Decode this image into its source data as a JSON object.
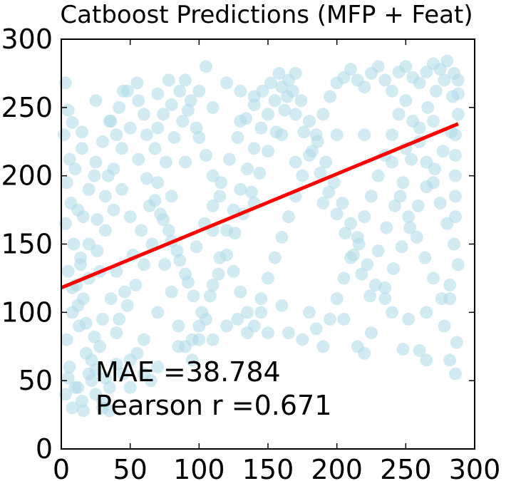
{
  "chart_data": {
    "type": "scatter",
    "title": "Catboost Predictions (MFP + Feat)",
    "xlabel": "",
    "ylabel": "",
    "xlim": [
      0,
      300
    ],
    "ylim": [
      0,
      300
    ],
    "xticks": [
      "0",
      "50",
      "100",
      "150",
      "200",
      "250",
      "300"
    ],
    "yticks": [
      "0",
      "50",
      "100",
      "150",
      "200",
      "250",
      "300"
    ],
    "grid": false,
    "point_color": "#add8e6",
    "point_opacity": 0.55,
    "points": [
      [
        3,
        268
      ],
      [
        5,
        248
      ],
      [
        8,
        239
      ],
      [
        2,
        230
      ],
      [
        6,
        212
      ],
      [
        10,
        205
      ],
      [
        4,
        195
      ],
      [
        7,
        180
      ],
      [
        12,
        175
      ],
      [
        3,
        165
      ],
      [
        9,
        150
      ],
      [
        14,
        140
      ],
      [
        5,
        130
      ],
      [
        11,
        120
      ],
      [
        16,
        110
      ],
      [
        8,
        100
      ],
      [
        13,
        90
      ],
      [
        4,
        80
      ],
      [
        18,
        70
      ],
      [
        6,
        60
      ],
      [
        20,
        55
      ],
      [
        10,
        45
      ],
      [
        25,
        40
      ],
      [
        15,
        35
      ],
      [
        30,
        30
      ],
      [
        35,
        28
      ],
      [
        22,
        65
      ],
      [
        28,
        75
      ],
      [
        40,
        85
      ],
      [
        45,
        55
      ],
      [
        50,
        45
      ],
      [
        55,
        70
      ],
      [
        60,
        80
      ],
      [
        65,
        50
      ],
      [
        70,
        100
      ],
      [
        20,
        125
      ],
      [
        26,
        145
      ],
      [
        32,
        160
      ],
      [
        38,
        175
      ],
      [
        44,
        190
      ],
      [
        25,
        210
      ],
      [
        30,
        225
      ],
      [
        36,
        240
      ],
      [
        42,
        250
      ],
      [
        48,
        262
      ],
      [
        15,
        232
      ],
      [
        34,
        200
      ],
      [
        40,
        130
      ],
      [
        46,
        115
      ],
      [
        52,
        142
      ],
      [
        58,
        160
      ],
      [
        64,
        178
      ],
      [
        70,
        195
      ],
      [
        76,
        210
      ],
      [
        82,
        228
      ],
      [
        88,
        240
      ],
      [
        94,
        255
      ],
      [
        100,
        262
      ],
      [
        56,
        255
      ],
      [
        62,
        230
      ],
      [
        68,
        220
      ],
      [
        74,
        245
      ],
      [
        80,
        252
      ],
      [
        86,
        262
      ],
      [
        92,
        248
      ],
      [
        98,
        235
      ],
      [
        75,
        135
      ],
      [
        80,
        115
      ],
      [
        85,
        90
      ],
      [
        90,
        75
      ],
      [
        95,
        65
      ],
      [
        100,
        80
      ],
      [
        105,
        95
      ],
      [
        110,
        120
      ],
      [
        115,
        140
      ],
      [
        120,
        160
      ],
      [
        125,
        175
      ],
      [
        130,
        190
      ],
      [
        135,
        205
      ],
      [
        140,
        220
      ],
      [
        145,
        235
      ],
      [
        150,
        245
      ],
      [
        155,
        255
      ],
      [
        160,
        265
      ],
      [
        165,
        270
      ],
      [
        170,
        275
      ],
      [
        120,
        268
      ],
      [
        130,
        262
      ],
      [
        140,
        258
      ],
      [
        110,
        250
      ],
      [
        100,
        228
      ],
      [
        105,
        215
      ],
      [
        110,
        200
      ],
      [
        115,
        185
      ],
      [
        125,
        130
      ],
      [
        130,
        115
      ],
      [
        135,
        100
      ],
      [
        140,
        90
      ],
      [
        145,
        110
      ],
      [
        150,
        125
      ],
      [
        155,
        140
      ],
      [
        160,
        155
      ],
      [
        165,
        170
      ],
      [
        170,
        185
      ],
      [
        175,
        200
      ],
      [
        180,
        215
      ],
      [
        185,
        230
      ],
      [
        190,
        245
      ],
      [
        195,
        258
      ],
      [
        200,
        268
      ],
      [
        205,
        272
      ],
      [
        210,
        278
      ],
      [
        215,
        270
      ],
      [
        220,
        265
      ],
      [
        225,
        275
      ],
      [
        230,
        280
      ],
      [
        235,
        270
      ],
      [
        240,
        262
      ],
      [
        245,
        276
      ],
      [
        250,
        280
      ],
      [
        255,
        272
      ],
      [
        260,
        268
      ],
      [
        265,
        276
      ],
      [
        270,
        282
      ],
      [
        275,
        278
      ],
      [
        280,
        284
      ],
      [
        285,
        275
      ],
      [
        288,
        270
      ],
      [
        180,
        100
      ],
      [
        185,
        88
      ],
      [
        190,
        75
      ],
      [
        195,
        95
      ],
      [
        200,
        110
      ],
      [
        205,
        125
      ],
      [
        210,
        140
      ],
      [
        215,
        155
      ],
      [
        220,
        170
      ],
      [
        225,
        185
      ],
      [
        230,
        200
      ],
      [
        235,
        215
      ],
      [
        240,
        230
      ],
      [
        245,
        245
      ],
      [
        250,
        255
      ],
      [
        255,
        240
      ],
      [
        260,
        225
      ],
      [
        265,
        210
      ],
      [
        270,
        195
      ],
      [
        275,
        180
      ],
      [
        280,
        165
      ],
      [
        285,
        150
      ],
      [
        288,
        135
      ],
      [
        282,
        120
      ],
      [
        276,
        110
      ],
      [
        270,
        125
      ],
      [
        264,
        140
      ],
      [
        258,
        155
      ],
      [
        252,
        170
      ],
      [
        246,
        185
      ],
      [
        240,
        100
      ],
      [
        235,
        110
      ],
      [
        228,
        120
      ],
      [
        222,
        135
      ],
      [
        216,
        150
      ],
      [
        210,
        165
      ],
      [
        204,
        180
      ],
      [
        198,
        195
      ],
      [
        192,
        210
      ],
      [
        186,
        225
      ],
      [
        180,
        240
      ],
      [
        174,
        255
      ],
      [
        168,
        262
      ],
      [
        162,
        248
      ],
      [
        156,
        232
      ],
      [
        150,
        218
      ],
      [
        144,
        202
      ],
      [
        138,
        188
      ],
      [
        132,
        172
      ],
      [
        126,
        158
      ],
      [
        120,
        142
      ],
      [
        114,
        128
      ],
      [
        108,
        112
      ],
      [
        102,
        100
      ],
      [
        96,
        112
      ],
      [
        90,
        128
      ],
      [
        84,
        145
      ],
      [
        78,
        160
      ],
      [
        72,
        172
      ],
      [
        66,
        150
      ],
      [
        60,
        135
      ],
      [
        54,
        120
      ],
      [
        48,
        105
      ],
      [
        42,
        95
      ],
      [
        36,
        110
      ],
      [
        30,
        95
      ],
      [
        24,
        82
      ],
      [
        18,
        92
      ],
      [
        12,
        105
      ],
      [
        8,
        118
      ],
      [
        14,
        135
      ],
      [
        20,
        150
      ],
      [
        26,
        168
      ],
      [
        32,
        185
      ],
      [
        38,
        205
      ],
      [
        44,
        220
      ],
      [
        50,
        235
      ],
      [
        56,
        212
      ],
      [
        62,
        198
      ],
      [
        68,
        182
      ],
      [
        74,
        168
      ],
      [
        80,
        152
      ],
      [
        86,
        138
      ],
      [
        92,
        122
      ],
      [
        98,
        148
      ],
      [
        104,
        165
      ],
      [
        110,
        178
      ],
      [
        116,
        195
      ],
      [
        122,
        212
      ],
      [
        128,
        228
      ],
      [
        134,
        242
      ],
      [
        140,
        252
      ],
      [
        146,
        262
      ],
      [
        152,
        268
      ],
      [
        158,
        275
      ],
      [
        164,
        258
      ],
      [
        170,
        245
      ],
      [
        176,
        232
      ],
      [
        182,
        218
      ],
      [
        188,
        202
      ],
      [
        194,
        188
      ],
      [
        200,
        172
      ],
      [
        206,
        158
      ],
      [
        212,
        142
      ],
      [
        218,
        128
      ],
      [
        224,
        112
      ],
      [
        230,
        145
      ],
      [
        236,
        162
      ],
      [
        242,
        178
      ],
      [
        248,
        195
      ],
      [
        254,
        212
      ],
      [
        260,
        235
      ],
      [
        266,
        250
      ],
      [
        272,
        262
      ],
      [
        278,
        270
      ],
      [
        284,
        258
      ],
      [
        288,
        245
      ],
      [
        283,
        232
      ],
      [
        277,
        218
      ],
      [
        271,
        205
      ],
      [
        265,
        192
      ],
      [
        259,
        178
      ],
      [
        253,
        162
      ],
      [
        247,
        148
      ],
      [
        241,
        132
      ],
      [
        235,
        118
      ],
      [
        286,
        200
      ],
      [
        286,
        185
      ],
      [
        286,
        170
      ],
      [
        286,
        230
      ],
      [
        286,
        215
      ],
      [
        288,
        260
      ],
      [
        20,
        190
      ],
      [
        24,
        200
      ],
      [
        16,
        170
      ],
      [
        40,
        230
      ],
      [
        70,
        235
      ],
      [
        90,
        210
      ],
      [
        130,
        240
      ],
      [
        160,
        230
      ],
      [
        190,
        180
      ],
      [
        220,
        230
      ],
      [
        250,
        220
      ],
      [
        270,
        240
      ],
      [
        240,
        210
      ],
      [
        200,
        230
      ],
      [
        170,
        210
      ],
      [
        140,
        180
      ],
      [
        110,
        160
      ],
      [
        80,
        185
      ],
      [
        50,
        170
      ],
      [
        28,
        130
      ],
      [
        248,
        73
      ],
      [
        260,
        72
      ],
      [
        265,
        65
      ],
      [
        282,
        65
      ],
      [
        286,
        55
      ],
      [
        287,
        78
      ],
      [
        265,
        100
      ],
      [
        282,
        110
      ],
      [
        278,
        90
      ],
      [
        252,
        95
      ],
      [
        215,
        75
      ],
      [
        220,
        70
      ],
      [
        225,
        85
      ],
      [
        205,
        95
      ],
      [
        175,
        80
      ],
      [
        165,
        85
      ],
      [
        160,
        105
      ],
      [
        150,
        85
      ],
      [
        145,
        100
      ],
      [
        135,
        85
      ],
      [
        120,
        90
      ],
      [
        128,
        95
      ],
      [
        95,
        80
      ],
      [
        100,
        90
      ],
      [
        110,
        80
      ],
      [
        85,
        75
      ],
      [
        70,
        60
      ],
      [
        60,
        55
      ],
      [
        50,
        65
      ],
      [
        40,
        62
      ],
      [
        35,
        45
      ],
      [
        30,
        35
      ],
      [
        22,
        50
      ],
      [
        12,
        45
      ],
      [
        5,
        52
      ],
      [
        3,
        40
      ],
      [
        8,
        30
      ],
      [
        16,
        28
      ],
      [
        25,
        58
      ],
      [
        32,
        52
      ],
      [
        105,
        280
      ],
      [
        90,
        270
      ],
      [
        70,
        260
      ],
      [
        60,
        245
      ],
      [
        45,
        262
      ],
      [
        35,
        240
      ],
      [
        25,
        255
      ],
      [
        15,
        220
      ],
      [
        55,
        268
      ],
      [
        78,
        270
      ]
    ],
    "fit_line": {
      "x": [
        0,
        288
      ],
      "y": [
        118,
        238
      ],
      "color": "#ff0000"
    },
    "annotations": [
      "MAE =38.784",
      "Pearson r =0.671"
    ]
  }
}
